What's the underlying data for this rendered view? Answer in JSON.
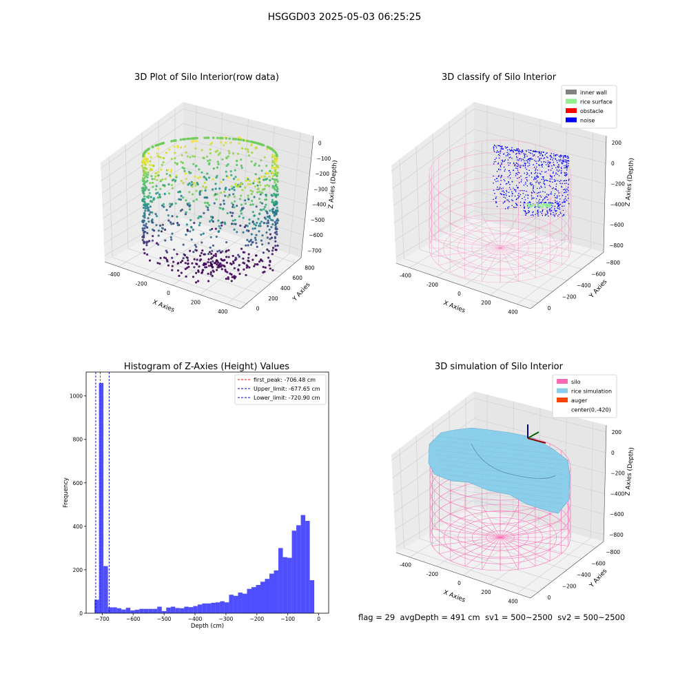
{
  "figure": {
    "title": "HSGGD03 2025-05-03 06:25:25",
    "status_line": "flag = 29  avgDepth = 491 cm  sv1 = 500~2500  sv2 = 500~2500"
  },
  "colors": {
    "histogram_bar": "#4f4ffe",
    "first_peak_line": "#ff0000",
    "limit_lines": "#0000cc",
    "silo_wire": "#ff69b4",
    "rice_sim": "#87ceeb",
    "noise": "#0000ff",
    "rice_surface": "#90ee90"
  },
  "chart_data": [
    {
      "id": "raw",
      "type": "scatter",
      "title": "3D Plot of Silo Interior(row data)",
      "xlabel": "X Axies",
      "ylabel": "Y Axies",
      "zlabel": "Z Axies (Depth)",
      "x_ticks": [
        "-400",
        "-200",
        "0",
        "200",
        "400"
      ],
      "y_ticks": [
        "0",
        "200",
        "400",
        "600",
        "800"
      ],
      "z_ticks": [
        "0",
        "−100",
        "−200",
        "−300",
        "−400",
        "−500",
        "−600",
        "−700"
      ],
      "colormap": "viridis"
    },
    {
      "id": "classify",
      "type": "scatter",
      "title": "3D classify of Silo Interior",
      "xlabel": "X Axies",
      "ylabel": "Y Axies",
      "zlabel": "Z Axies (Depth)",
      "x_ticks": [
        "-400",
        "-200",
        "0",
        "200",
        "400"
      ],
      "y_ticks": [
        "0",
        "−200",
        "−400",
        "−600",
        "−800"
      ],
      "z_ticks": [
        "200",
        "0",
        "−200",
        "−400",
        "−600",
        "−800"
      ],
      "legend": [
        {
          "label": "inner wall",
          "color": "#808080"
        },
        {
          "label": "rice surface",
          "color": "#90ee90"
        },
        {
          "label": "obstacle",
          "color": "#ff0000"
        },
        {
          "label": "noise",
          "color": "#0000ff"
        }
      ],
      "legend_position": "top-right"
    },
    {
      "id": "hist",
      "type": "bar",
      "title": "Histogram of Z-Axies (Height) Values",
      "xlabel": "Depth (cm)",
      "ylabel": "Frequency",
      "xlim": [
        -752,
        32
      ],
      "ylim": [
        0,
        1110
      ],
      "x_ticks": [
        -700,
        -600,
        -500,
        -400,
        -300,
        -200,
        -100,
        0
      ],
      "x_tick_labels": [
        "−700",
        "−600",
        "−500",
        "−400",
        "−300",
        "−200",
        "−100",
        "0"
      ],
      "y_ticks": [
        0,
        200,
        400,
        600,
        800,
        1000
      ],
      "y_tick_labels": [
        "0",
        "200",
        "400",
        "600",
        "800",
        "1000"
      ],
      "bin_start": -725,
      "bin_width": 14.5,
      "values": [
        62,
        1060,
        217,
        27,
        27,
        23,
        17,
        25,
        13,
        16,
        20,
        20,
        20,
        20,
        30,
        10,
        26,
        30,
        24,
        23,
        30,
        28,
        33,
        40,
        45,
        45,
        48,
        50,
        55,
        50,
        85,
        80,
        95,
        90,
        112,
        120,
        130,
        145,
        158,
        182,
        197,
        300,
        258,
        255,
        380,
        405,
        452,
        425,
        152
      ],
      "vlines": [
        {
          "value": -706.48,
          "label": "first_peak: -706.48 cm",
          "color": "#ff0000"
        },
        {
          "value": -677.65,
          "label": "Upper_limit: -677.65 cm",
          "color": "#0000cc"
        },
        {
          "value": -720.9,
          "label": "Lower_limit: -720.90 cm",
          "color": "#0000cc"
        }
      ],
      "legend_position": "top-right"
    },
    {
      "id": "sim",
      "type": "other",
      "title": "3D simulation of Silo Interior",
      "xlabel": "X Axies",
      "ylabel": "Y Axies",
      "zlabel": "Z Axies (Depth)",
      "x_ticks": [
        "-400",
        "-200",
        "0",
        "200",
        "400"
      ],
      "y_ticks": [
        "0",
        "−200",
        "−400",
        "−600",
        "−800"
      ],
      "z_ticks": [
        "200",
        "0",
        "−200",
        "−400",
        "−600",
        "−800"
      ],
      "legend": [
        {
          "label": "silo",
          "color": "#ff69b4"
        },
        {
          "label": "rice simulation",
          "color": "#87ceeb"
        },
        {
          "label": "auger",
          "color": "#ff4500"
        },
        {
          "label": "center(0,-420)",
          "color": ""
        }
      ],
      "legend_position": "top-right"
    }
  ]
}
